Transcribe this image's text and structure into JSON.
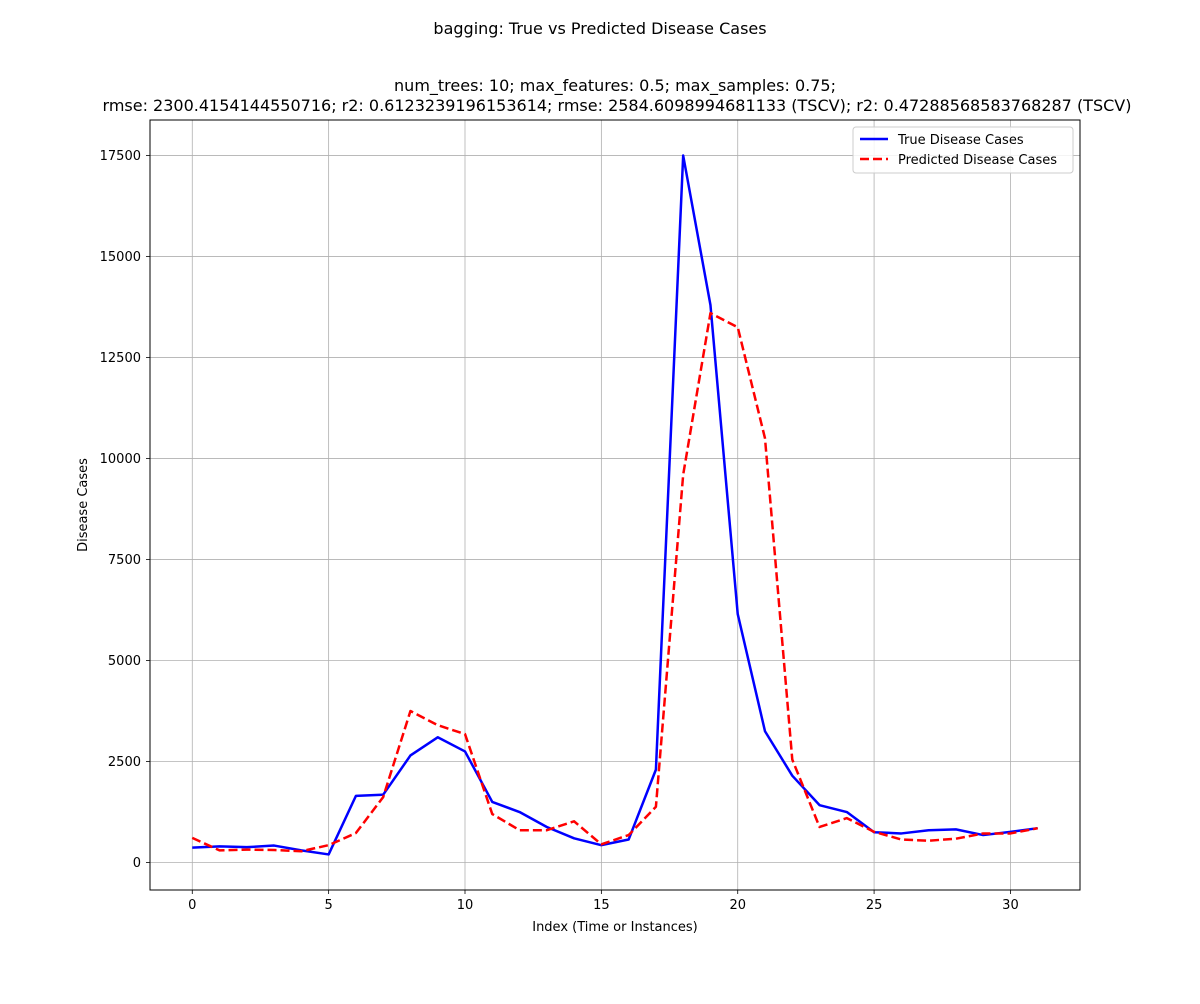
{
  "figure": {
    "suptitle": "bagging: True vs Predicted Disease Cases",
    "title_line1": "num_trees: 10; max_features: 0.5; max_samples: 0.75;",
    "title_line2": "rmse: 2300.4154144550716; r2: 0.6123239196153614; rmse: 2584.6098994681133 (TSCV); r2: 0.47288568583768287 (TSCV)"
  },
  "chart_data": {
    "type": "line",
    "title": "num_trees: 10; max_features: 0.5; max_samples: 0.75;\nrmse: 2300.4154144550716; r2: 0.6123239196153614; rmse: 2584.6098994681133 (TSCV); r2: 0.47288568583768287 (TSCV)",
    "xlabel": "Index (Time or Instances)",
    "ylabel": "Disease Cases",
    "xlim": [
      -1.55,
      32.55
    ],
    "ylim": [
      -680,
      18380
    ],
    "xticks": [
      0,
      5,
      10,
      15,
      20,
      25,
      30
    ],
    "yticks": [
      0,
      2500,
      5000,
      7500,
      10000,
      12500,
      15000,
      17500
    ],
    "grid": true,
    "legend_position": "top-right",
    "x": [
      0,
      1,
      2,
      3,
      4,
      5,
      6,
      7,
      8,
      9,
      10,
      11,
      12,
      13,
      14,
      15,
      16,
      17,
      18,
      19,
      20,
      21,
      22,
      23,
      24,
      25,
      26,
      27,
      28,
      29,
      30,
      31
    ],
    "series": [
      {
        "name": "True Disease Cases",
        "color": "#0000ff",
        "style": "solid",
        "values": [
          370,
          400,
          380,
          420,
          300,
          200,
          1650,
          1680,
          2650,
          3100,
          2750,
          1500,
          1250,
          880,
          600,
          430,
          570,
          2300,
          17500,
          13800,
          6150,
          3250,
          2150,
          1420,
          1250,
          750,
          720,
          800,
          820,
          680,
          760,
          850
        ]
      },
      {
        "name": "Predicted Disease Cases",
        "color": "#ff0000",
        "style": "dashed",
        "values": [
          610,
          300,
          320,
          310,
          280,
          430,
          730,
          1620,
          3750,
          3400,
          3180,
          1200,
          800,
          800,
          1020,
          450,
          680,
          1380,
          9600,
          13600,
          13250,
          10500,
          2550,
          880,
          1100,
          760,
          570,
          540,
          590,
          720,
          720,
          850
        ]
      }
    ]
  }
}
